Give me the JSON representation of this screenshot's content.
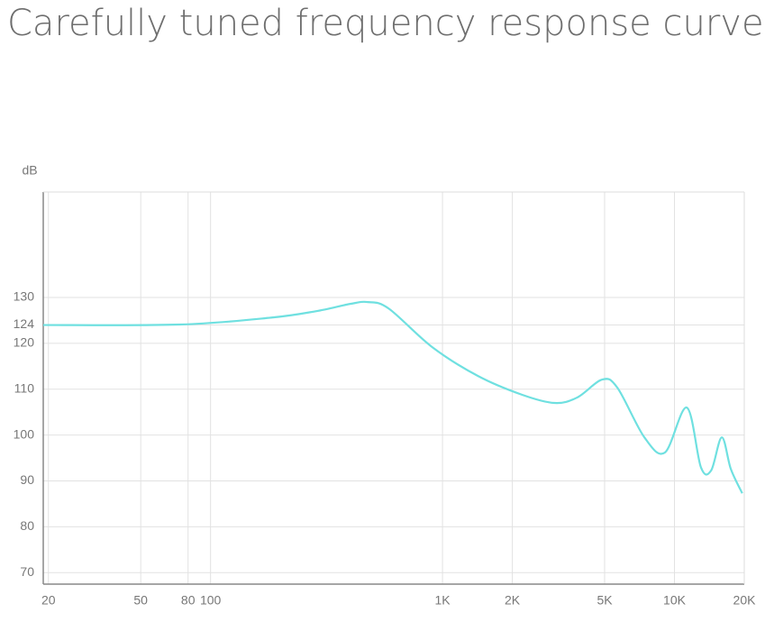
{
  "chart_data": {
    "type": "line",
    "title": "Carefully tuned frequency response curve",
    "y_label": "dB",
    "log_x": true,
    "grid": true,
    "x": [
      19,
      74,
      182,
      284,
      400,
      477,
      586,
      902,
      1420,
      2200,
      3040,
      3810,
      4880,
      5680,
      7420,
      9100,
      11300,
      13000,
      14400,
      16000,
      17500,
      19600
    ],
    "series": [
      {
        "name": "Frequency response",
        "color": "#6fe0e0",
        "values": [
          124,
          124.1,
          125.6,
          127,
          128.6,
          129,
          127.6,
          119.2,
          112.9,
          108.8,
          107,
          108.2,
          112.1,
          110.3,
          99.5,
          96.2,
          106,
          93,
          92.3,
          99.5,
          92.6,
          87.3
        ]
      }
    ],
    "xlim": [
      19,
      20000
    ],
    "xticks": [
      20,
      50,
      80,
      100,
      {
        "value": 1000,
        "label": "1K"
      },
      {
        "value": 2000,
        "label": "2K"
      },
      {
        "value": 5000,
        "label": "5K"
      },
      {
        "value": 10000,
        "label": "10K"
      },
      {
        "value": 20000,
        "label": "20K"
      }
    ],
    "ylim": [
      67.5,
      153
    ],
    "yticks": [
      70,
      80,
      90,
      100,
      110,
      120,
      124,
      130
    ]
  }
}
